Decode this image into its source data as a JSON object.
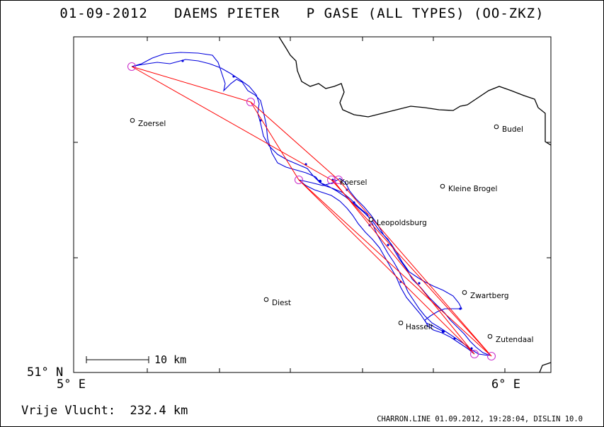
{
  "header": {
    "title": "01-09-2012   DAEMS PIETER   P GASE (ALL TYPES) (OO-ZKZ)"
  },
  "map": {
    "axes": {
      "lat_label": "51° N",
      "lon_left_label": "5° E",
      "lon_right_label": "6° E"
    },
    "scale_bar": {
      "label": "10 km"
    },
    "towns": [
      {
        "name": "Zoersel"
      },
      {
        "name": "Budel"
      },
      {
        "name": "Koersel"
      },
      {
        "name": "Kleine Brogel"
      },
      {
        "name": "Leopoldsburg"
      },
      {
        "name": "Zwartberg"
      },
      {
        "name": "Diest"
      },
      {
        "name": "Hasselt"
      },
      {
        "name": "Zutendaal"
      }
    ],
    "colors": {
      "track": "#0000dd",
      "task_legs": "#ff0000",
      "turnpoints": "#cc33cc",
      "border": "#000000"
    }
  },
  "footer": {
    "distance": "Vrije Vlucht:  232.4 km",
    "credits": "CHARRON.LINE 01.09.2012, 19:28:04, DISLIN 10.0"
  }
}
